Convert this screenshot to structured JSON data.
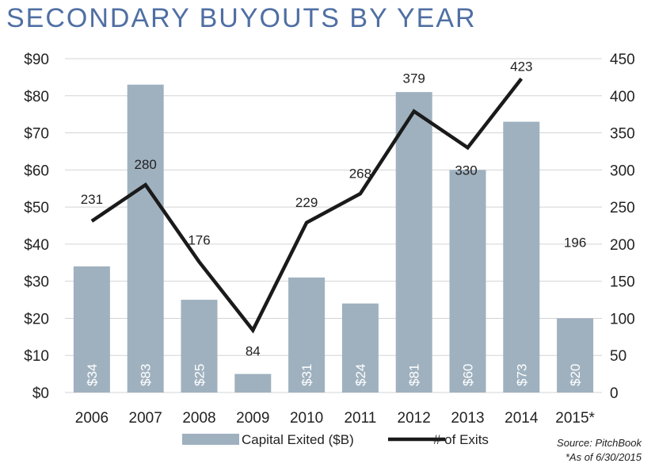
{
  "chart_data": {
    "type": "bar",
    "title": "SECONDARY BUYOUTS BY YEAR",
    "categories": [
      "2006",
      "2007",
      "2008",
      "2009",
      "2010",
      "2011",
      "2012",
      "2013",
      "2014",
      "2015*"
    ],
    "series": [
      {
        "name": "Capital Exited ($B)",
        "type": "bar",
        "axis": "left",
        "values": [
          34,
          83,
          25,
          5,
          31,
          24,
          81,
          60,
          73,
          20
        ],
        "labels": [
          "$34",
          "$83",
          "$25",
          "",
          "$31",
          "$24",
          "$81",
          "$60",
          "$73",
          "$20"
        ],
        "color": "#9fb1bf"
      },
      {
        "name": "# of Exits",
        "type": "line",
        "axis": "right",
        "values": [
          231,
          280,
          176,
          84,
          229,
          268,
          379,
          330,
          423,
          196
        ],
        "labels": [
          "231",
          "280",
          "176",
          "84",
          "229",
          "268",
          "379",
          "330",
          "423",
          "196"
        ],
        "color": "#1a1a1a"
      }
    ],
    "y_left": {
      "min": 0,
      "max": 90,
      "step": 10,
      "tick_labels": [
        "$0",
        "$10",
        "$20",
        "$30",
        "$40",
        "$50",
        "$60",
        "$70",
        "$80",
        "$90"
      ]
    },
    "y_right": {
      "min": 0,
      "max": 450,
      "step": 50,
      "tick_labels": [
        "0",
        "50",
        "100",
        "150",
        "200",
        "250",
        "300",
        "350",
        "400",
        "450"
      ]
    },
    "grid": true,
    "legend_position": "bottom",
    "source_note": "Source: PitchBook",
    "footnote": "*As of 6/30/2015"
  }
}
